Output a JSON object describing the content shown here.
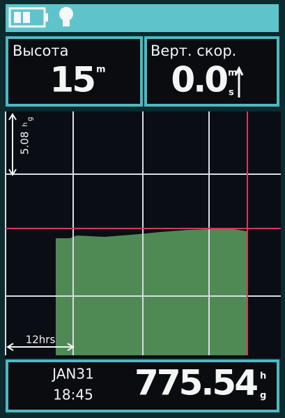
{
  "status_bar": {
    "battery": "battery",
    "backlight": "backlight"
  },
  "fields": [
    {
      "label": "Высота",
      "value": "15",
      "unit": "m"
    },
    {
      "label": "Верт. скор.",
      "value": "0.0",
      "unit_top": "m",
      "unit_bottom": "s"
    }
  ],
  "plot": {
    "scale_value": "5.08",
    "scale_unit_top": "h",
    "scale_unit_bottom": "g",
    "time_span": "12hrs"
  },
  "footer": {
    "date": "JAN31",
    "time": "18:45",
    "value": "775.54",
    "unit_top": "h",
    "unit_bottom": "g"
  }
}
